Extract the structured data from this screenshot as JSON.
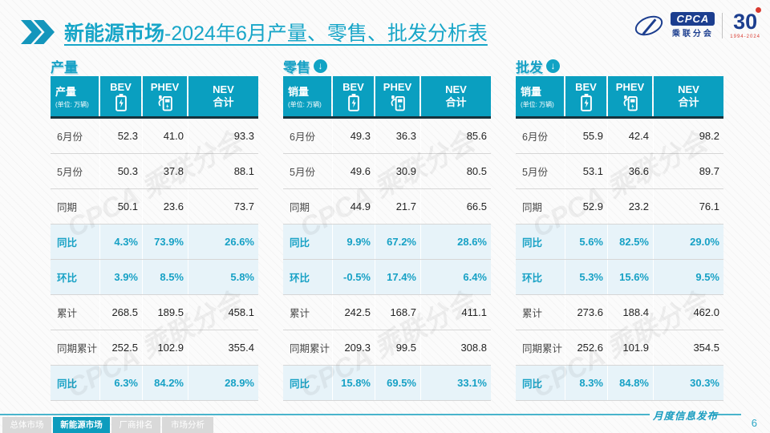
{
  "title": {
    "highlight": "新能源市场",
    "rest": "-2024年6月产量、零售、批发分析表"
  },
  "logo": {
    "cpca": "CPCA",
    "org": "乘联分会",
    "anniversary": "30",
    "years": "1994-2024"
  },
  "watermark": "CPCA 乘联分会",
  "tables": [
    {
      "section": "产量",
      "arrow": false,
      "header": {
        "label": "产量",
        "unit": "(单位: 万辆)",
        "bev": "BEV",
        "phev": "PHEV",
        "nev_line1": "NEV",
        "nev_line2": "合计"
      },
      "rows": [
        {
          "label": "6月份",
          "bev": "52.3",
          "phev": "41.0",
          "nev": "93.3",
          "hl": false
        },
        {
          "label": "5月份",
          "bev": "50.3",
          "phev": "37.8",
          "nev": "88.1",
          "hl": false
        },
        {
          "label": "同期",
          "bev": "50.1",
          "phev": "23.6",
          "nev": "73.7",
          "hl": false
        },
        {
          "label": "同比",
          "bev": "4.3%",
          "phev": "73.9%",
          "nev": "26.6%",
          "hl": true
        },
        {
          "label": "环比",
          "bev": "3.9%",
          "phev": "8.5%",
          "nev": "5.8%",
          "hl": true
        },
        {
          "label": "累计",
          "bev": "268.5",
          "phev": "189.5",
          "nev": "458.1",
          "hl": false
        },
        {
          "label": "同期累计",
          "bev": "252.5",
          "phev": "102.9",
          "nev": "355.4",
          "hl": false
        },
        {
          "label": "同比",
          "bev": "6.3%",
          "phev": "84.2%",
          "nev": "28.9%",
          "hl": true
        }
      ]
    },
    {
      "section": "零售",
      "arrow": true,
      "header": {
        "label": "销量",
        "unit": "(单位: 万辆)",
        "bev": "BEV",
        "phev": "PHEV",
        "nev_line1": "NEV",
        "nev_line2": "合计"
      },
      "rows": [
        {
          "label": "6月份",
          "bev": "49.3",
          "phev": "36.3",
          "nev": "85.6",
          "hl": false
        },
        {
          "label": "5月份",
          "bev": "49.6",
          "phev": "30.9",
          "nev": "80.5",
          "hl": false
        },
        {
          "label": "同期",
          "bev": "44.9",
          "phev": "21.7",
          "nev": "66.5",
          "hl": false
        },
        {
          "label": "同比",
          "bev": "9.9%",
          "phev": "67.2%",
          "nev": "28.6%",
          "hl": true
        },
        {
          "label": "环比",
          "bev": "-0.5%",
          "phev": "17.4%",
          "nev": "6.4%",
          "hl": true
        },
        {
          "label": "累计",
          "bev": "242.5",
          "phev": "168.7",
          "nev": "411.1",
          "hl": false
        },
        {
          "label": "同期累计",
          "bev": "209.3",
          "phev": "99.5",
          "nev": "308.8",
          "hl": false
        },
        {
          "label": "同比",
          "bev": "15.8%",
          "phev": "69.5%",
          "nev": "33.1%",
          "hl": true
        }
      ]
    },
    {
      "section": "批发",
      "arrow": true,
      "header": {
        "label": "销量",
        "unit": "(单位: 万辆)",
        "bev": "BEV",
        "phev": "PHEV",
        "nev_line1": "NEV",
        "nev_line2": "合计"
      },
      "rows": [
        {
          "label": "6月份",
          "bev": "55.9",
          "phev": "42.4",
          "nev": "98.2",
          "hl": false
        },
        {
          "label": "5月份",
          "bev": "53.1",
          "phev": "36.6",
          "nev": "89.7",
          "hl": false
        },
        {
          "label": "同期",
          "bev": "52.9",
          "phev": "23.2",
          "nev": "76.1",
          "hl": false
        },
        {
          "label": "同比",
          "bev": "5.6%",
          "phev": "82.5%",
          "nev": "29.0%",
          "hl": true
        },
        {
          "label": "环比",
          "bev": "5.3%",
          "phev": "15.6%",
          "nev": "9.5%",
          "hl": true
        },
        {
          "label": "累计",
          "bev": "273.6",
          "phev": "188.4",
          "nev": "462.0",
          "hl": false
        },
        {
          "label": "同期累计",
          "bev": "252.6",
          "phev": "101.9",
          "nev": "354.5",
          "hl": false
        },
        {
          "label": "同比",
          "bev": "8.3%",
          "phev": "84.8%",
          "nev": "30.3%",
          "hl": true
        }
      ]
    }
  ],
  "footer": {
    "tabs": [
      {
        "label": "总体市场",
        "active": false
      },
      {
        "label": "新能源市场",
        "active": true
      },
      {
        "label": "厂商排名",
        "active": false
      },
      {
        "label": "市场分析",
        "active": false
      }
    ],
    "publish": "月度信息发布",
    "page": "6"
  },
  "colors": {
    "teal_header": "#0a9fc0",
    "title_teal": "#18a6c8",
    "highlight_bg": "#e7f3f9",
    "highlight_text": "#17a1c5",
    "logo_navy": "#1c3e8f",
    "logo_red": "#d93a30",
    "tab_inactive": "#d9d9d9",
    "tab_active": "#0d9cbd"
  }
}
